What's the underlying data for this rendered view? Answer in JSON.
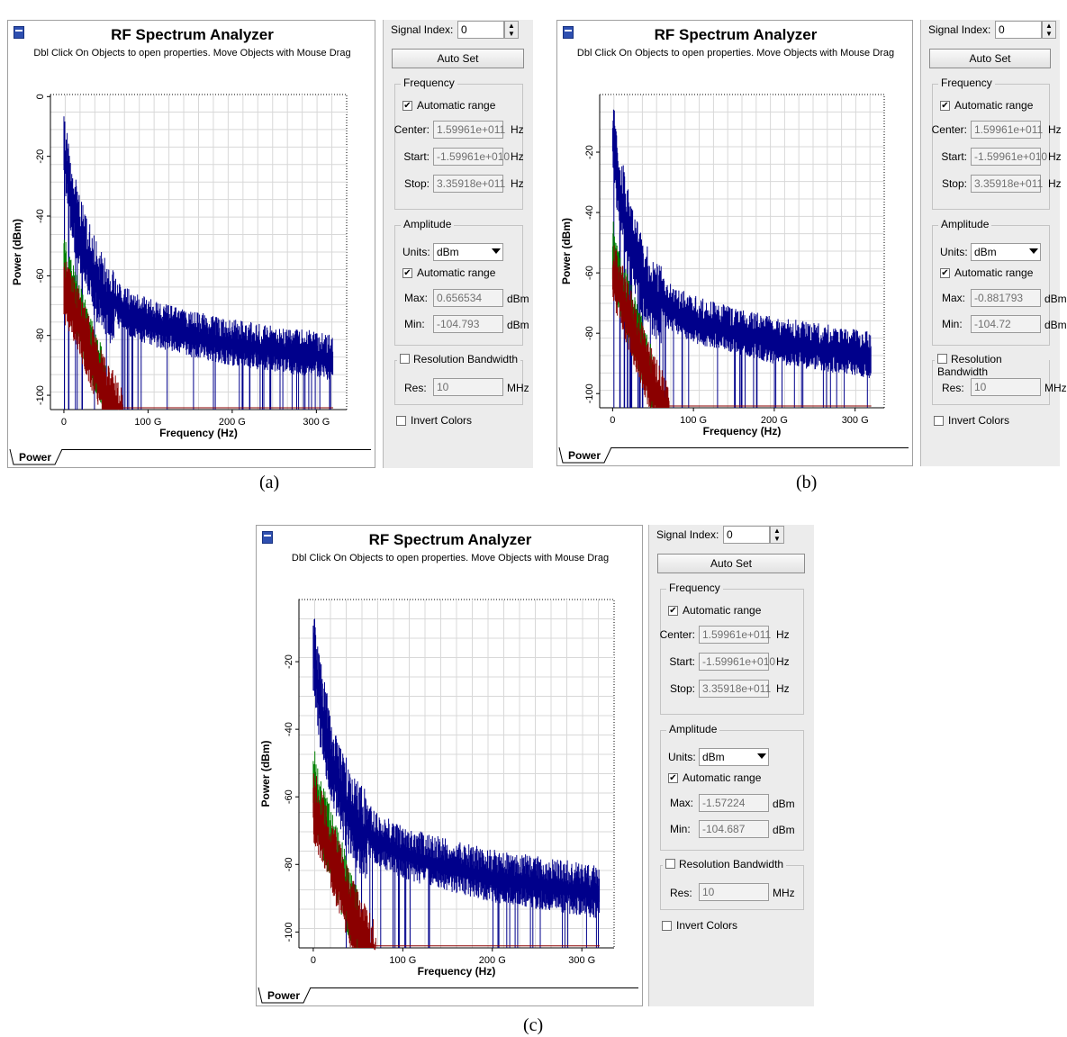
{
  "analyzers": [
    {
      "id": "a",
      "caption": "(a)",
      "window": {
        "title": "RF Spectrum Analyzer",
        "subtitle": "Dbl Click On Objects to open properties.  Move Objects with Mouse Drag",
        "tab_label": "Power"
      },
      "panel": {
        "signal_index_label": "Signal Index:",
        "signal_index_value": "0",
        "autoset_label": "Auto Set",
        "frequency": {
          "group_label": "Frequency",
          "auto_range_label": "Automatic range",
          "auto_range_checked": true,
          "center_label": "Center:",
          "center_value": "1.59961e+011",
          "center_unit": "Hz",
          "start_label": "Start:",
          "start_value": "-1.59961e+010",
          "start_unit": "Hz",
          "stop_label": "Stop:",
          "stop_value": "3.35918e+011",
          "stop_unit": "Hz"
        },
        "amplitude": {
          "group_label": "Amplitude",
          "units_label": "Units:",
          "units_value": "dBm",
          "auto_range_label": "Automatic range",
          "auto_range_checked": true,
          "max_label": "Max:",
          "max_value": "0.656534",
          "max_unit": "dBm",
          "min_label": "Min:",
          "min_value": "-104.793",
          "min_unit": "dBm"
        },
        "resolution": {
          "group_label": "Resolution Bandwidth",
          "checked": false,
          "res_label": "Res:",
          "res_value": "10",
          "res_unit": "MHz"
        },
        "invert_colors_label": "Invert Colors",
        "invert_colors_checked": false
      },
      "chart_data": {
        "type": "line",
        "xlabel": "Frequency (Hz)",
        "ylabel": "Power (dBm)",
        "xlim": [
          -16,
          336
        ],
        "ylim": [
          -104.8,
          0.7
        ],
        "xticks": [
          0,
          100,
          200,
          300
        ],
        "xtick_labels": [
          "0",
          "100 G",
          "200 G",
          "300 G"
        ],
        "yticks": [
          0,
          -20,
          -40,
          -60,
          -80,
          -100
        ],
        "ytick_labels": [
          "0",
          "-20",
          "-40",
          "-60",
          "-80",
          "-100"
        ],
        "grid": true,
        "series": [
          {
            "color": "#00008b",
            "x": [
              0,
              5,
              10,
              20,
              30,
              40,
              50,
              70,
              100,
              150,
              200,
              250,
              300,
              320
            ],
            "y": [
              -10,
              -22,
              -30,
              -42,
              -50,
              -57,
              -62,
              -68,
              -72,
              -76,
              -79,
              -81,
              -83,
              -84
            ]
          },
          {
            "color": "#008000",
            "x": [
              0,
              5,
              10,
              20,
              30,
              40,
              50
            ],
            "y": [
              -52,
              -58,
              -62,
              -70,
              -78,
              -86,
              -94
            ]
          },
          {
            "color": "#8b0000",
            "x": [
              0,
              10,
              20,
              30,
              40,
              50,
              60,
              70
            ],
            "y": [
              -60,
              -65,
              -72,
              -80,
              -88,
              -94,
              -99,
              -104
            ]
          }
        ]
      }
    },
    {
      "id": "b",
      "caption": "(b)",
      "window": {
        "title": "RF Spectrum Analyzer",
        "subtitle": "Dbl Click On Objects to open properties.  Move Objects with Mouse Drag",
        "tab_label": "Power"
      },
      "panel": {
        "signal_index_label": "Signal Index:",
        "signal_index_value": "0",
        "autoset_label": "Auto Set",
        "frequency": {
          "group_label": "Frequency",
          "auto_range_label": "Automatic range",
          "auto_range_checked": true,
          "center_label": "Center:",
          "center_value": "1.59961e+011",
          "center_unit": "Hz",
          "start_label": "Start:",
          "start_value": "-1.59961e+010",
          "start_unit": "Hz",
          "stop_label": "Stop:",
          "stop_value": "3.35918e+011",
          "stop_unit": "Hz"
        },
        "amplitude": {
          "group_label": "Amplitude",
          "units_label": "Units:",
          "units_value": "dBm",
          "auto_range_label": "Automatic range",
          "auto_range_checked": true,
          "max_label": "Max:",
          "max_value": "-0.881793",
          "max_unit": "dBm",
          "min_label": "Min:",
          "min_value": "-104.72",
          "min_unit": "dBm"
        },
        "resolution": {
          "group_label": "Resolution Bandwidth",
          "checked": false,
          "res_label": "Res:",
          "res_value": "10",
          "res_unit": "MHz"
        },
        "invert_colors_label": "Invert Colors",
        "invert_colors_checked": false
      },
      "chart_data": {
        "type": "line",
        "xlabel": "Frequency (Hz)",
        "ylabel": "Power (dBm)",
        "xlim": [
          -16,
          336
        ],
        "ylim": [
          -104.7,
          -0.9
        ],
        "xticks": [
          0,
          100,
          200,
          300
        ],
        "xtick_labels": [
          "0",
          "100 G",
          "200 G",
          "300 G"
        ],
        "yticks": [
          -20,
          -40,
          -60,
          -80,
          -100
        ],
        "ytick_labels": [
          "-20",
          "-40",
          "-60",
          "-80",
          "-100"
        ],
        "grid": true,
        "series": [
          {
            "color": "#00008b",
            "x": [
              0,
              5,
              10,
              20,
              30,
              40,
              50,
              70,
              100,
              150,
              200,
              250,
              300,
              320
            ],
            "y": [
              -8,
              -20,
              -28,
              -40,
              -50,
              -57,
              -62,
              -68,
              -72,
              -76,
              -79,
              -81,
              -83,
              -84
            ]
          },
          {
            "color": "#008000",
            "x": [
              0,
              5,
              10,
              20,
              30,
              40,
              50
            ],
            "y": [
              -48,
              -55,
              -60,
              -68,
              -76,
              -84,
              -92
            ]
          },
          {
            "color": "#8b0000",
            "x": [
              0,
              10,
              20,
              30,
              40,
              50,
              60,
              70
            ],
            "y": [
              -55,
              -62,
              -70,
              -78,
              -86,
              -92,
              -98,
              -104
            ]
          }
        ]
      }
    },
    {
      "id": "c",
      "caption": "(c)",
      "window": {
        "title": "RF Spectrum Analyzer",
        "subtitle": "Dbl Click On Objects to open properties.  Move Objects with Mouse Drag",
        "tab_label": "Power"
      },
      "panel": {
        "signal_index_label": "Signal Index:",
        "signal_index_value": "0",
        "autoset_label": "Auto Set",
        "frequency": {
          "group_label": "Frequency",
          "auto_range_label": "Automatic range",
          "auto_range_checked": true,
          "center_label": "Center:",
          "center_value": "1.59961e+011",
          "center_unit": "Hz",
          "start_label": "Start:",
          "start_value": "-1.59961e+010",
          "start_unit": "Hz",
          "stop_label": "Stop:",
          "stop_value": "3.35918e+011",
          "stop_unit": "Hz"
        },
        "amplitude": {
          "group_label": "Amplitude",
          "units_label": "Units:",
          "units_value": "dBm",
          "auto_range_label": "Automatic range",
          "auto_range_checked": true,
          "max_label": "Max:",
          "max_value": "-1.57224",
          "max_unit": "dBm",
          "min_label": "Min:",
          "min_value": "-104.687",
          "min_unit": "dBm"
        },
        "resolution": {
          "group_label": "Resolution Bandwidth",
          "checked": false,
          "res_label": "Res:",
          "res_value": "10",
          "res_unit": "MHz"
        },
        "invert_colors_label": "Invert Colors",
        "invert_colors_checked": false
      },
      "chart_data": {
        "type": "line",
        "xlabel": "Frequency (Hz)",
        "ylabel": "Power (dBm)",
        "xlim": [
          -16,
          336
        ],
        "ylim": [
          -104.7,
          -1.6
        ],
        "xticks": [
          0,
          100,
          200,
          300
        ],
        "xtick_labels": [
          "0",
          "100 G",
          "200 G",
          "300 G"
        ],
        "yticks": [
          -20,
          -40,
          -60,
          -80,
          -100
        ],
        "ytick_labels": [
          "-20",
          "-40",
          "-60",
          "-80",
          "-100"
        ],
        "grid": true,
        "series": [
          {
            "color": "#00008b",
            "x": [
              0,
              5,
              10,
              20,
              30,
              40,
              50,
              70,
              100,
              150,
              200,
              250,
              300,
              320
            ],
            "y": [
              -10,
              -22,
              -30,
              -42,
              -52,
              -58,
              -63,
              -69,
              -73,
              -77,
              -80,
              -82,
              -84,
              -85
            ]
          },
          {
            "color": "#008000",
            "x": [
              0,
              5,
              10,
              20,
              30,
              40,
              50
            ],
            "y": [
              -50,
              -57,
              -62,
              -70,
              -78,
              -86,
              -94
            ]
          },
          {
            "color": "#8b0000",
            "x": [
              0,
              10,
              20,
              30,
              40,
              50,
              60,
              70
            ],
            "y": [
              -58,
              -64,
              -72,
              -80,
              -88,
              -94,
              -99,
              -104
            ]
          }
        ]
      }
    }
  ]
}
